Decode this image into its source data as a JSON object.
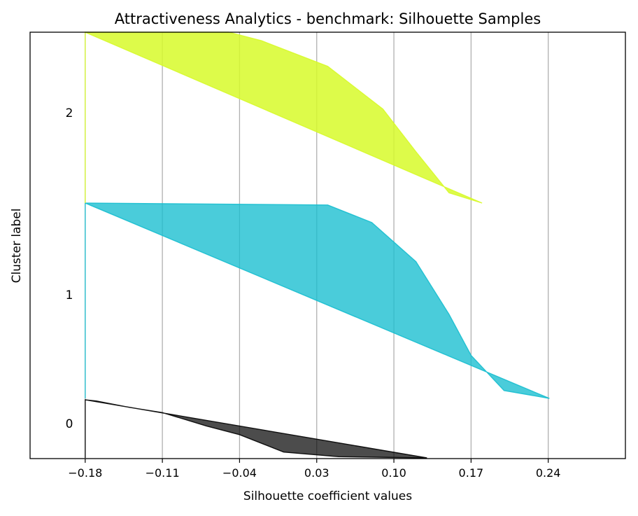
{
  "chart_data": {
    "type": "area",
    "title": "Attractiveness Analytics - benchmark: Silhouette Samples",
    "xlabel": "Silhouette coefficient values",
    "ylabel": "Cluster label",
    "xlim": [
      -0.23,
      0.31
    ],
    "xticks": [
      -0.18,
      -0.11,
      -0.04,
      0.03,
      0.1,
      0.17,
      0.24
    ],
    "xtick_labels": [
      "−0.18",
      "−0.11",
      "−0.04",
      "0.03",
      "0.10",
      "0.17",
      "0.24"
    ],
    "grid": "vertical",
    "baseline": -0.18,
    "clusters": [
      {
        "label": "0",
        "color": "#000000",
        "alpha": 0.7,
        "profile": [
          [
            0.13,
            1.0
          ],
          [
            0.05,
            0.98
          ],
          [
            0.0,
            0.9
          ],
          [
            -0.04,
            0.6
          ],
          [
            -0.07,
            0.45
          ],
          [
            -0.11,
            0.22
          ],
          [
            -0.14,
            0.13
          ],
          [
            -0.17,
            0.02
          ],
          [
            -0.18,
            0.0
          ]
        ]
      },
      {
        "label": "1",
        "color": "#17becf",
        "alpha": 0.78,
        "profile": [
          [
            0.241,
            1.0
          ],
          [
            0.2,
            0.96
          ],
          [
            0.17,
            0.78
          ],
          [
            0.15,
            0.57
          ],
          [
            0.12,
            0.3
          ],
          [
            0.08,
            0.1
          ],
          [
            0.04,
            0.01
          ],
          [
            -0.18,
            0.0
          ]
        ]
      },
      {
        "label": "2",
        "color": "#d7fa2a",
        "alpha": 0.85,
        "profile": [
          [
            0.18,
            1.0
          ],
          [
            0.15,
            0.94
          ],
          [
            0.12,
            0.7
          ],
          [
            0.09,
            0.45
          ],
          [
            0.04,
            0.2
          ],
          [
            -0.02,
            0.05
          ],
          [
            -0.05,
            0.0
          ],
          [
            -0.18,
            0.0
          ]
        ]
      }
    ]
  }
}
